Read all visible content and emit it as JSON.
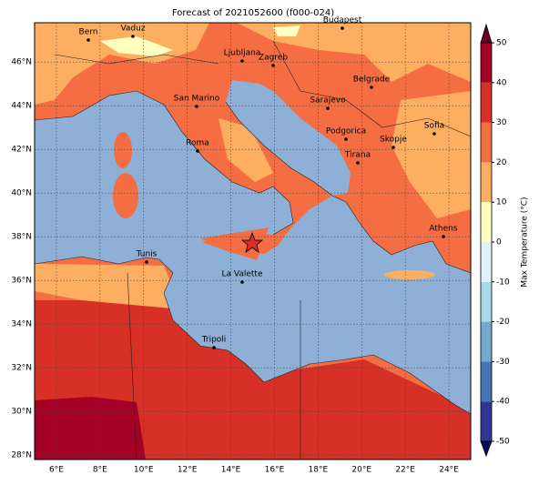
{
  "title": "Forecast of 2021052600 (f000-024)",
  "map": {
    "lon_lim": [
      5,
      25
    ],
    "lat_lim": [
      27.8,
      47.8
    ],
    "lon_ticks": [
      {
        "value": 6,
        "label": "6°E"
      },
      {
        "value": 8,
        "label": "8°E"
      },
      {
        "value": 10,
        "label": "10°E"
      },
      {
        "value": 12,
        "label": "12°E"
      },
      {
        "value": 14,
        "label": "14°E"
      },
      {
        "value": 16,
        "label": "16°E"
      },
      {
        "value": 18,
        "label": "18°E"
      },
      {
        "value": 20,
        "label": "20°E"
      },
      {
        "value": 22,
        "label": "22°E"
      },
      {
        "value": 24,
        "label": "24°E"
      }
    ],
    "lat_ticks": [
      {
        "value": 28,
        "label": "28°N"
      },
      {
        "value": 30,
        "label": "30°N"
      },
      {
        "value": 32,
        "label": "32°N"
      },
      {
        "value": 34,
        "label": "34°N"
      },
      {
        "value": 36,
        "label": "36°N"
      },
      {
        "value": 38,
        "label": "38°N"
      },
      {
        "value": 40,
        "label": "40°N"
      },
      {
        "value": 42,
        "label": "42°N"
      },
      {
        "value": 44,
        "label": "44°N"
      },
      {
        "value": 46,
        "label": "46°N"
      }
    ],
    "grid": true,
    "cities": [
      "Bern",
      "Vaduz",
      "Budapest",
      "Ljubljana",
      "Zagreb",
      "San Marino",
      "Belgrade",
      "Sarajevo",
      "Roma",
      "Podgorica",
      "Skopje",
      "Sofia",
      "Tirana",
      "Athens",
      "Tunis",
      "La Valette",
      "Tripoli"
    ]
  },
  "colorbar": {
    "label": "Max Temperature (°C)",
    "lim": [
      -50,
      50
    ],
    "ticks": [
      -50,
      -40,
      -30,
      -20,
      -10,
      0,
      10,
      20,
      30,
      40,
      50
    ],
    "colors": [
      "#313695",
      "#4575b4",
      "#74a9cf",
      "#abd9e9",
      "#e0f3f8",
      "#ffffbf",
      "#fdae61",
      "#f46d43",
      "#d73027",
      "#a50026"
    ],
    "under_color": "#0b0b5c",
    "over_color": "#67001f"
  }
}
